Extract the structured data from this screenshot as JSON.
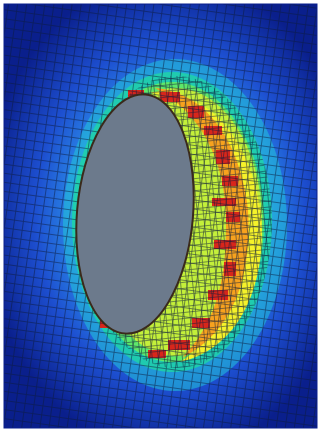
{
  "image": {
    "subject": "finite-element-stress-contour",
    "colormap": [
      "#0a1f8c",
      "#1d4fd0",
      "#2a86e6",
      "#23c4d9",
      "#1fd9a0",
      "#5ee86a",
      "#c4f03a",
      "#f5f22a",
      "#f7a21e",
      "#d8261b"
    ],
    "hole_color": "#6c7a8c",
    "background_color": "#ffffff",
    "mesh_line_color": "#0b1a3a"
  }
}
